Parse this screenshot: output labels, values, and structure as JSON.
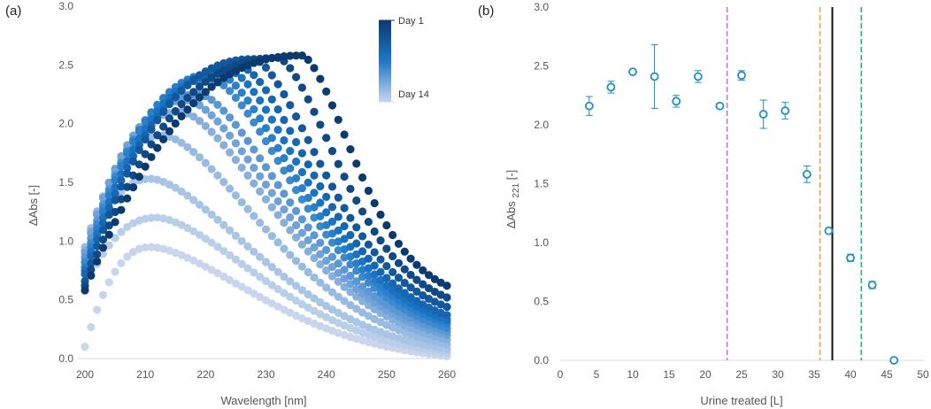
{
  "chart_data": [
    {
      "type": "scatter",
      "panel_label": "(a)",
      "xlabel": "Wavelength [nm]",
      "ylabel": "ΔAbs  [-]",
      "xlim": [
        200,
        260
      ],
      "ylim": [
        0,
        3.0
      ],
      "xticks": [
        "200",
        "210",
        "220",
        "230",
        "240",
        "250",
        "260"
      ],
      "yticks": [
        "0.0",
        "0.5",
        "1.0",
        "1.5",
        "2.0",
        "2.5",
        "3.0"
      ],
      "grid": false,
      "legend": {
        "type": "colorbar",
        "placement": "top-right",
        "top_label": "Day 1",
        "bottom_label": "Day 14",
        "color_top": "#0b3a6e",
        "color_mid": "#1f77c9",
        "color_bottom": "#c8d5ec"
      },
      "x": [
        200,
        201,
        202,
        203,
        204,
        205,
        206,
        207,
        208,
        209,
        210,
        211,
        212,
        213,
        214,
        215,
        216,
        217,
        218,
        219,
        220,
        221,
        222,
        223,
        224,
        225,
        226,
        227,
        228,
        229,
        230,
        231,
        232,
        233,
        234,
        235,
        236,
        237,
        238,
        239,
        240,
        241,
        242,
        243,
        244,
        245,
        246,
        247,
        248,
        249,
        250,
        251,
        252,
        253,
        254,
        255,
        256,
        257,
        258,
        259,
        260
      ],
      "series": [
        {
          "name": "Day 1",
          "peak_x": 236,
          "peak_y": 2.58,
          "start_y": 0.58,
          "end_y": 0.62,
          "color": "#0b3a6e"
        },
        {
          "name": "Day 2",
          "peak_x": 232,
          "peak_y": 2.56,
          "start_y": 0.62,
          "end_y": 0.52,
          "color": "#0f4a86"
        },
        {
          "name": "Day 3",
          "peak_x": 228,
          "peak_y": 2.55,
          "start_y": 0.66,
          "end_y": 0.44,
          "color": "#13589c"
        },
        {
          "name": "Day 4",
          "peak_x": 226,
          "peak_y": 2.48,
          "start_y": 0.72,
          "end_y": 0.37,
          "color": "#1766b1"
        },
        {
          "name": "Day 5",
          "peak_x": 224,
          "peak_y": 2.45,
          "start_y": 0.75,
          "end_y": 0.33,
          "color": "#1a72c2"
        },
        {
          "name": "Day 6",
          "peak_x": 222,
          "peak_y": 2.43,
          "start_y": 0.78,
          "end_y": 0.3,
          "color": "#2a7fcb"
        },
        {
          "name": "Day 7",
          "peak_x": 221,
          "peak_y": 2.38,
          "start_y": 0.82,
          "end_y": 0.26,
          "color": "#3b8ad0"
        },
        {
          "name": "Day 8",
          "peak_x": 219,
          "peak_y": 2.25,
          "start_y": 0.86,
          "end_y": 0.23,
          "color": "#5b97d4"
        },
        {
          "name": "Day 9",
          "peak_x": 217,
          "peak_y": 2.2,
          "start_y": 0.9,
          "end_y": 0.2,
          "color": "#6fa2d8"
        },
        {
          "name": "Day 10",
          "peak_x": 216,
          "peak_y": 2.1,
          "start_y": 0.92,
          "end_y": 0.16,
          "color": "#86afdc"
        },
        {
          "name": "Day 11",
          "peak_x": 213,
          "peak_y": 1.9,
          "start_y": 0.95,
          "end_y": 0.12,
          "color": "#98bbe1"
        },
        {
          "name": "Day 12",
          "peak_x": 211,
          "peak_y": 1.53,
          "start_y": 0.85,
          "end_y": 0.08,
          "color": "#a9c5e5"
        },
        {
          "name": "Day 13",
          "peak_x": 212,
          "peak_y": 1.2,
          "start_y": 0.6,
          "end_y": 0.05,
          "color": "#b9cfe9"
        },
        {
          "name": "Day 14",
          "peak_x": 211,
          "peak_y": 0.95,
          "start_y": 0.1,
          "end_y": 0.02,
          "color": "#c8d5ec"
        }
      ]
    },
    {
      "type": "scatter",
      "panel_label": "(b)",
      "xlabel": "Urine treated [L]",
      "ylabel": "ΔAbs",
      "ylabel_subscript": "221",
      "ylabel_suffix": "[-]",
      "xlim": [
        0,
        50
      ],
      "ylim": [
        0,
        3.0
      ],
      "xticks": [
        "0",
        "5",
        "10",
        "15",
        "20",
        "25",
        "30",
        "35",
        "40",
        "45",
        "50"
      ],
      "yticks": [
        "0.0",
        "0.5",
        "1.0",
        "1.5",
        "2.0",
        "2.5",
        "3.0"
      ],
      "grid": false,
      "marker_color": "#1f8fc4",
      "points": [
        {
          "x": 4,
          "y": 2.16,
          "err": 0.08
        },
        {
          "x": 7,
          "y": 2.32,
          "err": 0.05
        },
        {
          "x": 10,
          "y": 2.45,
          "err": 0.02
        },
        {
          "x": 13,
          "y": 2.41,
          "err": 0.27
        },
        {
          "x": 16,
          "y": 2.2,
          "err": 0.05
        },
        {
          "x": 19,
          "y": 2.41,
          "err": 0.05
        },
        {
          "x": 22,
          "y": 2.16,
          "err": 0.02
        },
        {
          "x": 25,
          "y": 2.42,
          "err": 0.04
        },
        {
          "x": 28,
          "y": 2.09,
          "err": 0.12
        },
        {
          "x": 31,
          "y": 2.12,
          "err": 0.07
        },
        {
          "x": 34,
          "y": 1.58,
          "err": 0.07
        },
        {
          "x": 37,
          "y": 1.1,
          "err": 0.0
        },
        {
          "x": 40,
          "y": 0.87,
          "err": 0.03
        },
        {
          "x": 43,
          "y": 0.64,
          "err": 0.03
        },
        {
          "x": 46,
          "y": 0.0,
          "err": 0.0
        }
      ],
      "vlines": [
        {
          "x": 23,
          "color": "#b57bd6",
          "style": "dashed"
        },
        {
          "x": 35.8,
          "color": "#f0a14a",
          "style": "dashed"
        },
        {
          "x": 37.5,
          "color": "#111111",
          "style": "solid"
        },
        {
          "x": 41.5,
          "color": "#22b573",
          "style": "dashed"
        }
      ]
    }
  ]
}
